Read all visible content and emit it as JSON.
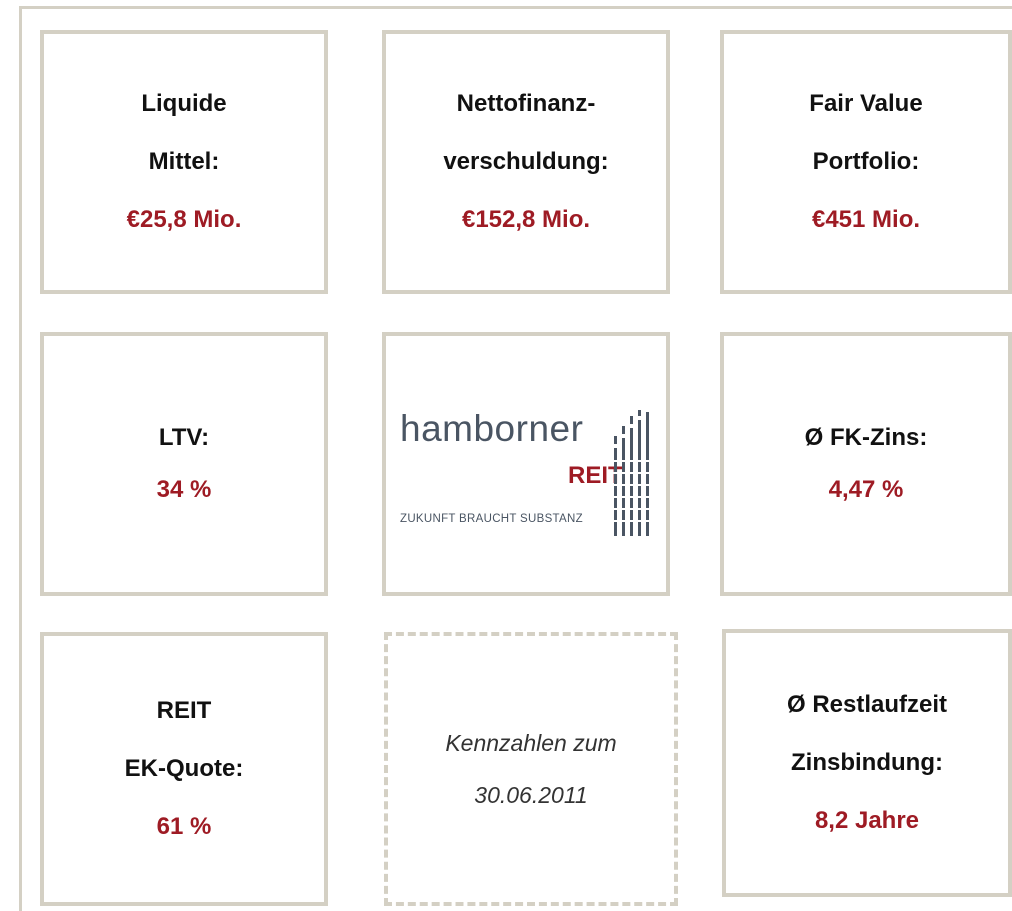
{
  "cells": [
    {
      "lines": [
        "Liquide",
        "Mittel:"
      ],
      "value": "€25,8 Mio."
    },
    {
      "lines": [
        "Nettofinanz-",
        "verschuldung:"
      ],
      "value": "€152,8 Mio."
    },
    {
      "lines": [
        "Fair Value",
        "Portfolio:"
      ],
      "value": "€451 Mio."
    },
    {
      "lines": [
        "LTV:"
      ],
      "value": "34 %"
    },
    {
      "lines": [
        "Ø FK-Zins:"
      ],
      "value": "4,47 %"
    },
    {
      "lines": [
        "REIT",
        "EK-Quote:"
      ],
      "value": "61 %"
    },
    {
      "lines": [
        "Ø Restlaufzeit",
        "Zinsbindung:"
      ],
      "value": "8,2 Jahre"
    }
  ],
  "logo": {
    "name": "hamborner",
    "brand": "REIT",
    "tagline": "ZUKUNFT BRAUCHT SUBSTANZ"
  },
  "note": [
    "Kennzahlen zum",
    "30.06.2011"
  ]
}
